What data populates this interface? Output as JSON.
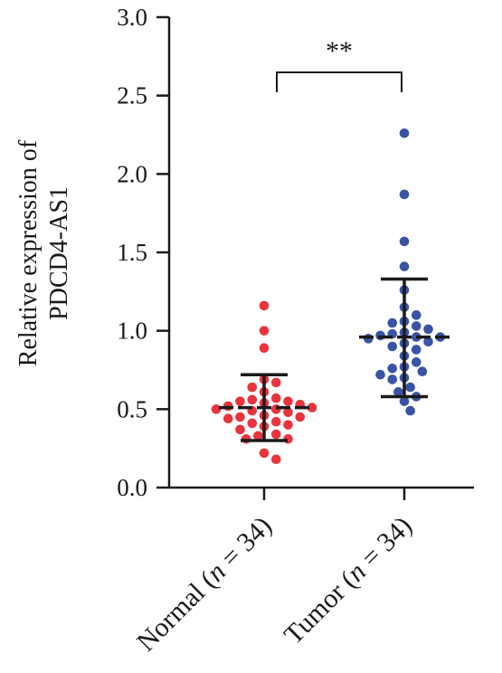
{
  "chart_data": {
    "type": "scatter",
    "subtype": "dot-plot with mean and standard deviation",
    "ylabel_line1": "Relative expression of",
    "ylabel_line2": "PDCD4-AS1",
    "ylim": [
      0,
      3.0
    ],
    "yticks": [
      "0.0",
      "0.5",
      "1.0",
      "1.5",
      "2.0",
      "2.5",
      "3.0"
    ],
    "grid": false,
    "groups": [
      {
        "label_name": "Normal (",
        "label_n": "n",
        "label_rest": " = 34)",
        "color": "#e8343e",
        "mean": 0.51,
        "sd_low": 0.3,
        "sd_high": 0.72,
        "values": [
          1.16,
          1.0,
          0.89,
          0.69,
          0.67,
          0.64,
          0.61,
          0.57,
          0.56,
          0.55,
          0.55,
          0.54,
          0.53,
          0.52,
          0.51,
          0.5,
          0.5,
          0.49,
          0.48,
          0.46,
          0.45,
          0.45,
          0.44,
          0.42,
          0.41,
          0.4,
          0.39,
          0.37,
          0.34,
          0.33,
          0.31,
          0.31,
          0.22,
          0.18
        ]
      },
      {
        "label_name": "Tumor (",
        "label_n": "n",
        "label_rest": " = 34)",
        "color": "#3a53a4",
        "mean": 0.96,
        "sd_low": 0.58,
        "sd_high": 1.33,
        "values": [
          2.26,
          1.87,
          1.57,
          1.41,
          1.26,
          1.15,
          1.1,
          1.06,
          1.05,
          1.03,
          1.01,
          0.99,
          0.98,
          0.97,
          0.96,
          0.96,
          0.95,
          0.93,
          0.92,
          0.9,
          0.88,
          0.84,
          0.8,
          0.77,
          0.76,
          0.74,
          0.72,
          0.7,
          0.69,
          0.64,
          0.61,
          0.58,
          0.55,
          0.49
        ]
      }
    ],
    "significance": "**"
  }
}
